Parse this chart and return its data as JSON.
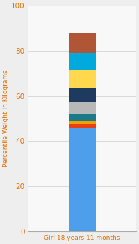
{
  "category": "Girl 18 years 11 months",
  "segments": [
    {
      "value": 46,
      "color": "#4d9fec"
    },
    {
      "value": 1.5,
      "color": "#e84010"
    },
    {
      "value": 1.5,
      "color": "#f0a000"
    },
    {
      "value": 3.0,
      "color": "#1a7a8a"
    },
    {
      "value": 5.0,
      "color": "#b8b8b8"
    },
    {
      "value": 6.5,
      "color": "#1e3a5f"
    },
    {
      "value": 8.0,
      "color": "#ffd84d"
    },
    {
      "value": 7.5,
      "color": "#00aadd"
    },
    {
      "value": 9.0,
      "color": "#b05535"
    }
  ],
  "ylim": [
    0,
    100
  ],
  "yticks": [
    0,
    20,
    40,
    60,
    80,
    100
  ],
  "ylabel": "Percentile Weight in Kilograms",
  "xlabel_color": "#e07000",
  "ylabel_color": "#e07000",
  "tick_color": "#e07000",
  "background_color": "#eeeeee",
  "plot_background": "#f8f8f8",
  "bar_width": 0.35,
  "figsize": [
    2.0,
    3.5
  ],
  "dpi": 100
}
